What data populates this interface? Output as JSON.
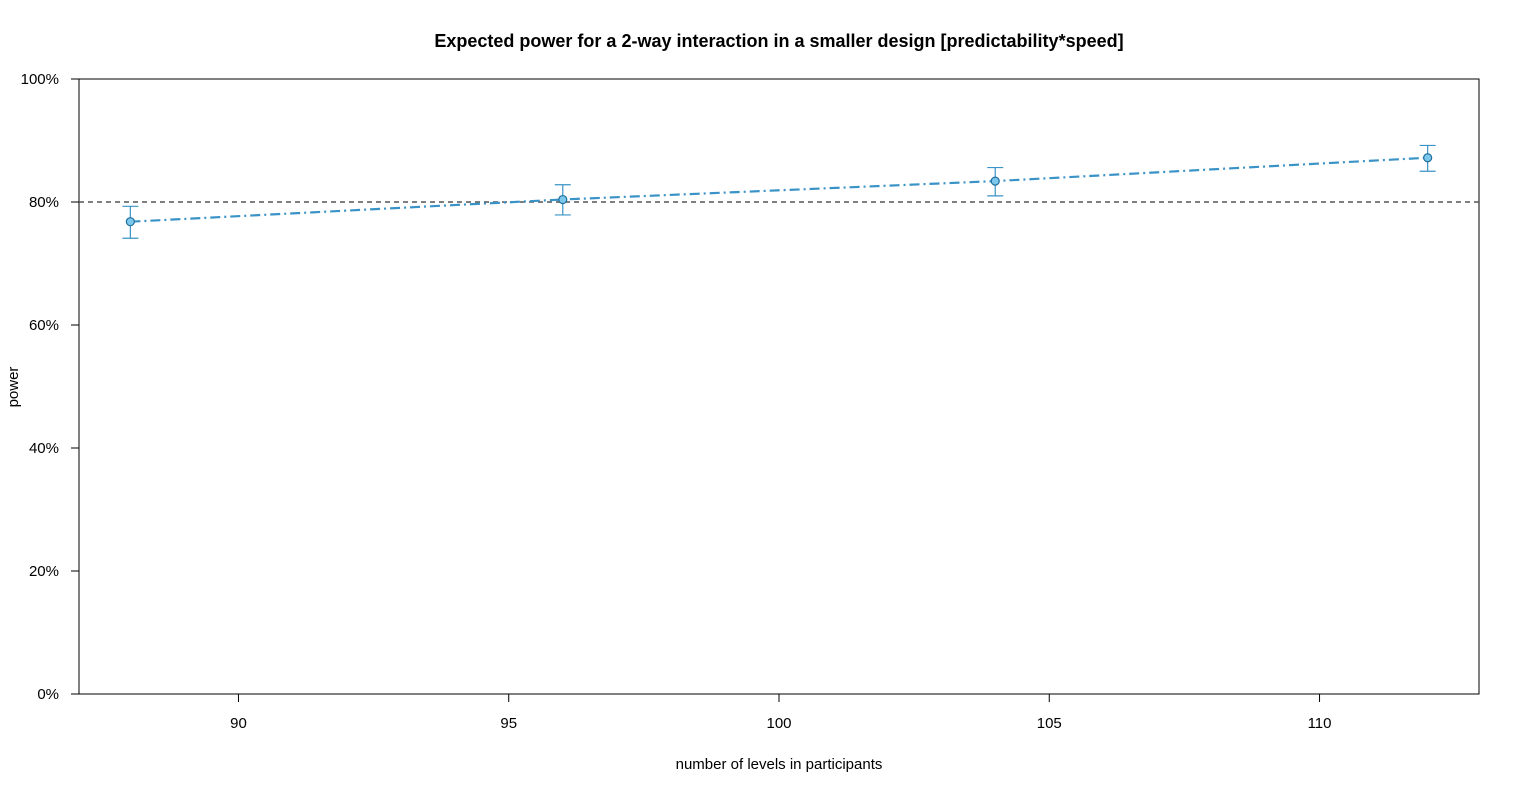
{
  "chart_data": {
    "type": "line",
    "title": "Expected power for a 2-way interaction in a smaller design [predictability*speed]",
    "xlabel": "number of levels in participants",
    "ylabel": "power",
    "xlim": [
      87.05,
      112.95
    ],
    "ylim": [
      0,
      100
    ],
    "x_ticks": [
      90,
      95,
      100,
      105,
      110
    ],
    "x_tick_labels": [
      "90",
      "95",
      "100",
      "105",
      "110"
    ],
    "y_ticks": [
      0,
      20,
      40,
      60,
      80,
      100
    ],
    "y_tick_labels": [
      "0%",
      "20%",
      "40%",
      "60%",
      "80%",
      "100%"
    ],
    "grid": false,
    "reference_line": {
      "y": 80,
      "style": "dashed",
      "color": "#555555"
    },
    "series": [
      {
        "color": "#3A93C6",
        "marker_fill": "#7CC8EC",
        "line_style": "dot-dash",
        "points": [
          {
            "x": 88,
            "y": 76.8,
            "lower": 74.1,
            "upper": 79.3
          },
          {
            "x": 96,
            "y": 80.4,
            "lower": 77.9,
            "upper": 82.8
          },
          {
            "x": 104,
            "y": 83.4,
            "lower": 81.0,
            "upper": 85.6
          },
          {
            "x": 112,
            "y": 87.2,
            "lower": 85.0,
            "upper": 89.2
          }
        ]
      }
    ]
  }
}
